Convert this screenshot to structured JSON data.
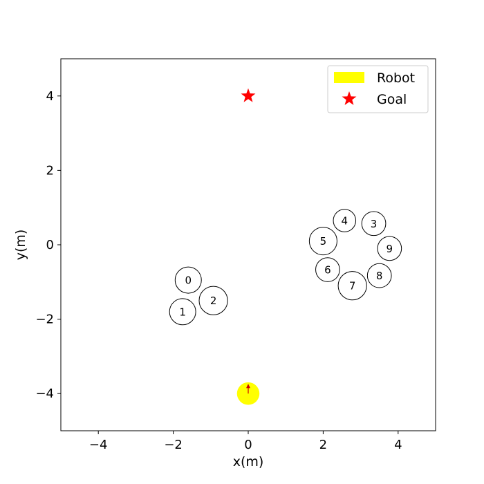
{
  "chart_data": {
    "type": "scatter",
    "xlabel": "x(m)",
    "ylabel": "y(m)",
    "xlim": [
      -5,
      5
    ],
    "ylim": [
      -5,
      5
    ],
    "xticks": [
      -4,
      -2,
      0,
      2,
      4
    ],
    "yticks": [
      -4,
      -2,
      0,
      2,
      4
    ],
    "xtick_labels": [
      "−4",
      "−2",
      "0",
      "2",
      "4"
    ],
    "ytick_labels": [
      "−4",
      "−2",
      "0",
      "2",
      "4"
    ],
    "grid": false,
    "legend_position": "top-right",
    "legend": [
      {
        "label": "Robot",
        "marker": "rectangle",
        "color": "#ffff00"
      },
      {
        "label": "Goal",
        "marker": "star",
        "color": "#ff0000"
      }
    ],
    "robot": {
      "x": 0.0,
      "y": -4.0,
      "radius": 0.3,
      "color": "#ffff00",
      "heading_deg": 90,
      "arrow_color": "#cc0000"
    },
    "goal": {
      "x": 0.0,
      "y": 4.0,
      "color": "#ff0000"
    },
    "obstacles": [
      {
        "id": "0",
        "x": -1.6,
        "y": -0.95,
        "radius": 0.35
      },
      {
        "id": "1",
        "x": -1.75,
        "y": -1.8,
        "radius": 0.35
      },
      {
        "id": "2",
        "x": -0.93,
        "y": -1.5,
        "radius": 0.38
      },
      {
        "id": "3",
        "x": 3.35,
        "y": 0.57,
        "radius": 0.32
      },
      {
        "id": "4",
        "x": 2.57,
        "y": 0.65,
        "radius": 0.3
      },
      {
        "id": "5",
        "x": 2.0,
        "y": 0.1,
        "radius": 0.37
      },
      {
        "id": "6",
        "x": 2.12,
        "y": -0.67,
        "radius": 0.32
      },
      {
        "id": "7",
        "x": 2.78,
        "y": -1.1,
        "radius": 0.38
      },
      {
        "id": "8",
        "x": 3.5,
        "y": -0.83,
        "radius": 0.32
      },
      {
        "id": "9",
        "x": 3.77,
        "y": -0.1,
        "radius": 0.32
      }
    ]
  }
}
